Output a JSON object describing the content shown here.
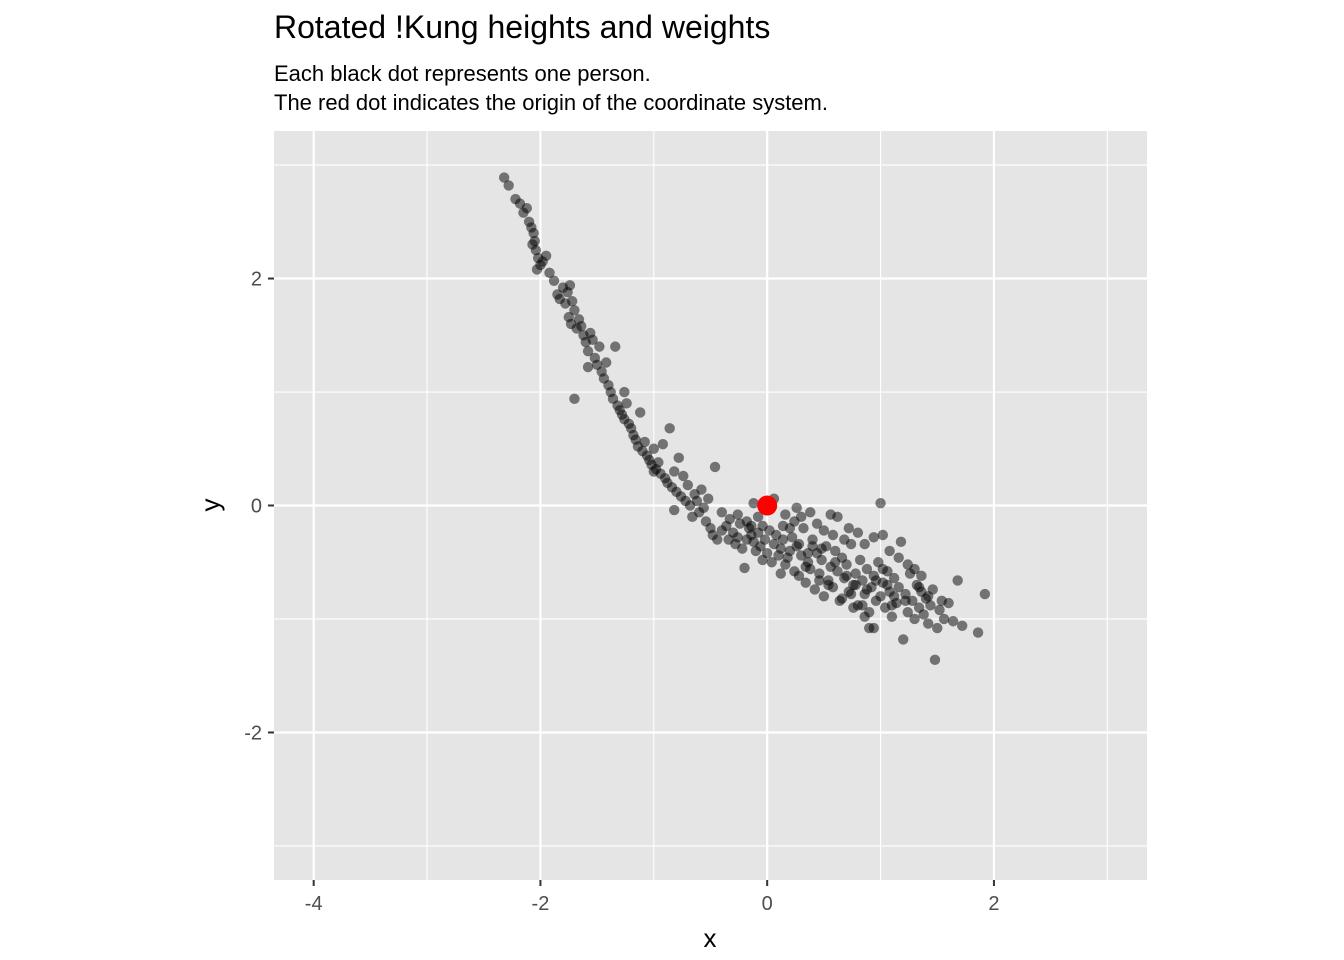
{
  "chart_data": {
    "type": "scatter",
    "title": "Rotated !Kung heights and weights",
    "subtitle_lines": [
      "Each black dot represents one person.",
      "The red dot indicates the origin of the coordinate system."
    ],
    "xlabel": "x",
    "ylabel": "y",
    "xlim": [
      -4.35,
      3.35
    ],
    "ylim": [
      -3.3,
      3.3
    ],
    "x_ticks": [
      -4,
      -2,
      0,
      2
    ],
    "y_ticks": [
      -2,
      0,
      2
    ],
    "x_tick_labels": [
      "-4",
      "-2",
      "0",
      "2"
    ],
    "y_tick_labels": [
      "-2",
      "0",
      "2"
    ],
    "grid": true,
    "background": "#e5e5e5",
    "grid_color": "#ffffff",
    "point_color": "#000000",
    "point_opacity": 0.5,
    "origin_color": "#ff0000",
    "origin_point": {
      "x": 0,
      "y": 0
    },
    "points": [
      [
        -2.32,
        2.89
      ],
      [
        -2.28,
        2.82
      ],
      [
        -2.22,
        2.7
      ],
      [
        -2.18,
        2.66
      ],
      [
        -2.15,
        2.58
      ],
      [
        -2.12,
        2.62
      ],
      [
        -2.1,
        2.5
      ],
      [
        -2.08,
        2.45
      ],
      [
        -2.06,
        2.4
      ],
      [
        -2.05,
        2.33
      ],
      [
        -2.07,
        2.3
      ],
      [
        -2.04,
        2.25
      ],
      [
        -2.02,
        2.18
      ],
      [
        -2.0,
        2.12
      ],
      [
        -2.03,
        2.08
      ],
      [
        -1.98,
        2.15
      ],
      [
        -1.95,
        2.2
      ],
      [
        -1.92,
        2.05
      ],
      [
        -1.88,
        1.98
      ],
      [
        -1.85,
        1.86
      ],
      [
        -1.83,
        1.82
      ],
      [
        -1.8,
        1.92
      ],
      [
        -1.78,
        1.78
      ],
      [
        -1.76,
        1.88
      ],
      [
        -1.74,
        1.94
      ],
      [
        -1.72,
        1.8
      ],
      [
        -1.7,
        1.72
      ],
      [
        -1.75,
        1.66
      ],
      [
        -1.73,
        1.6
      ],
      [
        -1.68,
        1.56
      ],
      [
        -1.66,
        1.64
      ],
      [
        -1.64,
        1.58
      ],
      [
        -1.62,
        1.5
      ],
      [
        -1.6,
        1.44
      ],
      [
        -1.58,
        1.36
      ],
      [
        -1.56,
        1.52
      ],
      [
        -1.54,
        1.46
      ],
      [
        -1.52,
        1.3
      ],
      [
        -1.5,
        1.24
      ],
      [
        -1.48,
        1.4
      ],
      [
        -1.46,
        1.18
      ],
      [
        -1.44,
        1.12
      ],
      [
        -1.42,
        1.26
      ],
      [
        -1.4,
        1.06
      ],
      [
        -1.38,
        1.0
      ],
      [
        -1.36,
        0.94
      ],
      [
        -1.34,
        1.4
      ],
      [
        -1.32,
        0.88
      ],
      [
        -1.3,
        0.84
      ],
      [
        -1.28,
        0.8
      ],
      [
        -1.26,
        0.76
      ],
      [
        -1.24,
        0.9
      ],
      [
        -1.22,
        0.72
      ],
      [
        -1.2,
        0.68
      ],
      [
        -1.18,
        0.62
      ],
      [
        -1.16,
        0.58
      ],
      [
        -1.14,
        0.52
      ],
      [
        -1.12,
        0.82
      ],
      [
        -1.1,
        0.48
      ],
      [
        -1.08,
        0.56
      ],
      [
        -1.06,
        0.44
      ],
      [
        -1.04,
        0.4
      ],
      [
        -1.02,
        0.36
      ],
      [
        -1.0,
        0.5
      ],
      [
        -0.98,
        0.32
      ],
      [
        -0.96,
        0.38
      ],
      [
        -0.94,
        0.28
      ],
      [
        -0.92,
        0.54
      ],
      [
        -0.9,
        0.24
      ],
      [
        -0.88,
        0.2
      ],
      [
        -0.86,
        0.68
      ],
      [
        -0.84,
        0.16
      ],
      [
        -0.82,
        0.3
      ],
      [
        -0.8,
        0.12
      ],
      [
        -0.78,
        0.42
      ],
      [
        -0.76,
        0.08
      ],
      [
        -0.74,
        0.26
      ],
      [
        -0.72,
        0.04
      ],
      [
        -0.7,
        0.18
      ],
      [
        -0.68,
        0.0
      ],
      [
        -0.66,
        -0.1
      ],
      [
        -0.64,
        0.1
      ],
      [
        -0.62,
        0.04
      ],
      [
        -0.6,
        -0.06
      ],
      [
        -0.58,
        0.14
      ],
      [
        -0.56,
        -0.02
      ],
      [
        -0.54,
        -0.14
      ],
      [
        -0.52,
        0.06
      ],
      [
        -0.5,
        -0.2
      ],
      [
        -0.48,
        -0.26
      ],
      [
        -0.46,
        0.34
      ],
      [
        -0.44,
        -0.3
      ],
      [
        -0.4,
        -0.22
      ],
      [
        -0.36,
        -0.18
      ],
      [
        -0.33,
        -0.12
      ],
      [
        -0.3,
        -0.24
      ],
      [
        -0.28,
        -0.34
      ],
      [
        -0.26,
        -0.28
      ],
      [
        -0.24,
        -0.16
      ],
      [
        -0.22,
        -0.38
      ],
      [
        -0.2,
        -0.55
      ],
      [
        -0.18,
        -0.3
      ],
      [
        -0.16,
        -0.2
      ],
      [
        -0.14,
        -0.26
      ],
      [
        -0.12,
        -0.32
      ],
      [
        -0.1,
        -0.4
      ],
      [
        -0.08,
        -0.24
      ],
      [
        -0.06,
        -0.36
      ],
      [
        -0.04,
        -0.48
      ],
      [
        -0.02,
        -0.3
      ],
      [
        0.0,
        -0.42
      ],
      [
        0.02,
        -0.22
      ],
      [
        0.04,
        -0.5
      ],
      [
        0.06,
        -0.34
      ],
      [
        0.08,
        -0.26
      ],
      [
        0.1,
        -0.44
      ],
      [
        0.12,
        -0.38
      ],
      [
        0.14,
        -0.3
      ],
      [
        0.16,
        -0.52
      ],
      [
        0.18,
        -0.46
      ],
      [
        0.2,
        -0.4
      ],
      [
        0.22,
        -0.28
      ],
      [
        0.24,
        -0.58
      ],
      [
        0.26,
        -0.36
      ],
      [
        0.28,
        -0.62
      ],
      [
        0.3,
        -0.44
      ],
      [
        0.32,
        -0.2
      ],
      [
        0.34,
        -0.68
      ],
      [
        0.36,
        -0.5
      ],
      [
        0.38,
        -0.56
      ],
      [
        0.4,
        -0.3
      ],
      [
        0.42,
        -0.74
      ],
      [
        0.44,
        -0.42
      ],
      [
        0.46,
        -0.6
      ],
      [
        0.48,
        -0.48
      ],
      [
        0.5,
        -0.8
      ],
      [
        0.52,
        -0.36
      ],
      [
        0.54,
        -0.66
      ],
      [
        0.56,
        -0.54
      ],
      [
        0.58,
        -0.72
      ],
      [
        0.6,
        -0.4
      ],
      [
        0.62,
        -0.58
      ],
      [
        0.64,
        -0.84
      ],
      [
        0.66,
        -0.46
      ],
      [
        0.68,
        -0.64
      ],
      [
        0.7,
        -0.52
      ],
      [
        0.72,
        -0.76
      ],
      [
        0.74,
        -0.34
      ],
      [
        0.76,
        -0.7
      ],
      [
        0.78,
        -0.6
      ],
      [
        0.8,
        -0.88
      ],
      [
        0.82,
        -0.48
      ],
      [
        0.84,
        -0.66
      ],
      [
        0.86,
        -0.78
      ],
      [
        0.88,
        -0.56
      ],
      [
        0.9,
        -0.94
      ],
      [
        0.92,
        -0.72
      ],
      [
        0.94,
        -0.62
      ],
      [
        0.96,
        -0.84
      ],
      [
        0.98,
        -0.5
      ],
      [
        1.0,
        -0.8
      ],
      [
        1.02,
        -0.68
      ],
      [
        1.04,
        -0.9
      ],
      [
        1.06,
        -0.58
      ],
      [
        1.08,
        -0.76
      ],
      [
        1.1,
        -0.98
      ],
      [
        1.12,
        -0.64
      ],
      [
        1.14,
        -0.86
      ],
      [
        1.16,
        -0.72
      ],
      [
        1.18,
        -0.32
      ],
      [
        1.2,
        -1.18
      ],
      [
        1.22,
        -0.78
      ],
      [
        1.24,
        -0.94
      ],
      [
        1.26,
        -0.6
      ],
      [
        1.28,
        -0.84
      ],
      [
        1.3,
        -1.0
      ],
      [
        1.32,
        -0.7
      ],
      [
        1.34,
        -0.9
      ],
      [
        1.36,
        -0.76
      ],
      [
        1.38,
        -0.96
      ],
      [
        1.4,
        -0.82
      ],
      [
        1.42,
        -1.04
      ],
      [
        1.44,
        -0.88
      ],
      [
        1.46,
        -0.74
      ],
      [
        1.48,
        -1.36
      ],
      [
        1.5,
        -1.08
      ],
      [
        1.52,
        -0.92
      ],
      [
        1.56,
        -1.0
      ],
      [
        1.6,
        -0.86
      ],
      [
        1.64,
        -1.02
      ],
      [
        1.68,
        -0.66
      ],
      [
        1.72,
        -1.06
      ],
      [
        1.86,
        -1.12
      ],
      [
        1.92,
        -0.78
      ],
      [
        1.0,
        0.02
      ],
      [
        0.56,
        -0.08
      ],
      [
        0.62,
        -0.1
      ],
      [
        0.38,
        -0.06
      ],
      [
        0.26,
        -0.02
      ],
      [
        0.06,
        0.06
      ],
      [
        -0.12,
        0.02
      ],
      [
        0.24,
        -0.14
      ],
      [
        0.3,
        -0.1
      ],
      [
        0.16,
        -0.08
      ],
      [
        0.44,
        -0.16
      ],
      [
        0.5,
        -0.22
      ],
      [
        0.58,
        -0.26
      ],
      [
        0.68,
        -0.3
      ],
      [
        0.72,
        -0.2
      ],
      [
        0.8,
        -0.24
      ],
      [
        0.86,
        -0.34
      ],
      [
        0.94,
        -0.28
      ],
      [
        1.08,
        -0.4
      ],
      [
        1.16,
        -0.46
      ],
      [
        1.24,
        -0.52
      ],
      [
        1.3,
        -0.56
      ],
      [
        1.36,
        -0.62
      ],
      [
        0.34,
        -0.54
      ],
      [
        0.46,
        -0.66
      ],
      [
        0.54,
        -0.7
      ],
      [
        0.66,
        -0.82
      ],
      [
        0.76,
        -0.9
      ],
      [
        0.86,
        -0.98
      ],
      [
        0.94,
        -1.08
      ],
      [
        0.9,
        -1.08
      ],
      [
        1.02,
        -0.56
      ],
      [
        0.4,
        -0.36
      ],
      [
        0.14,
        -0.18
      ],
      [
        -0.26,
        -0.08
      ],
      [
        -0.18,
        -0.14
      ],
      [
        -0.34,
        -0.3
      ],
      [
        -1.7,
        0.94
      ],
      [
        -1.58,
        1.22
      ],
      [
        -1.26,
        1.0
      ],
      [
        -1.0,
        0.3
      ],
      [
        -0.82,
        -0.04
      ],
      [
        -0.4,
        -0.06
      ],
      [
        1.02,
        -0.26
      ],
      [
        0.12,
        -0.6
      ],
      [
        -0.04,
        -0.18
      ],
      [
        -0.08,
        -0.1
      ],
      [
        -0.14,
        -0.18
      ],
      [
        0.2,
        -0.2
      ],
      [
        0.28,
        -0.34
      ],
      [
        0.36,
        -0.42
      ],
      [
        0.48,
        -0.38
      ],
      [
        0.6,
        -0.5
      ],
      [
        0.7,
        -0.62
      ],
      [
        0.78,
        -0.7
      ],
      [
        0.88,
        -0.74
      ],
      [
        0.96,
        -0.66
      ],
      [
        1.06,
        -0.7
      ],
      [
        1.12,
        -0.8
      ],
      [
        1.22,
        -0.84
      ],
      [
        1.34,
        -0.72
      ],
      [
        1.42,
        -0.8
      ],
      [
        1.54,
        -0.84
      ],
      [
        1.1,
        -0.88
      ],
      [
        0.84,
        -0.88
      ],
      [
        0.74,
        -0.78
      ]
    ]
  }
}
